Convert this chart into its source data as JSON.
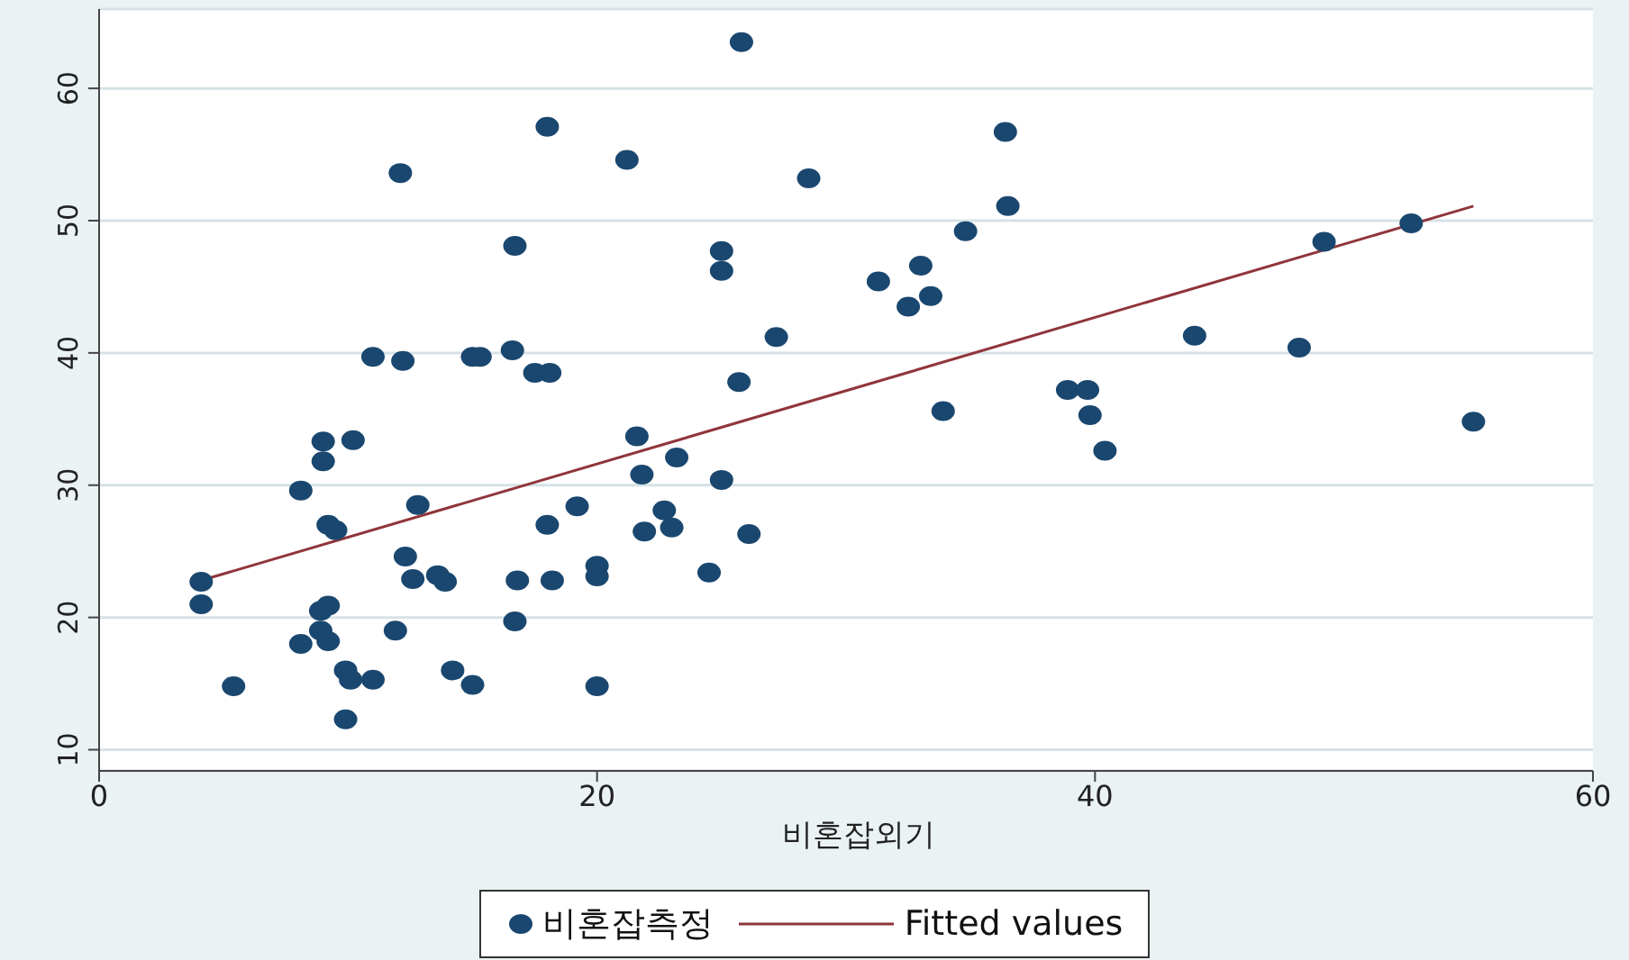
{
  "chart_data": {
    "type": "scatter",
    "xlabel": "비혼잡외기",
    "xlim": [
      0,
      60
    ],
    "xticks": [
      0,
      20,
      40,
      60
    ],
    "ylim": [
      8.4,
      66
    ],
    "yticks": [
      10,
      20,
      30,
      40,
      50,
      60
    ],
    "grid": "y",
    "legend": "bottom",
    "marker": "circle",
    "series": [
      {
        "name": "비혼잡측정",
        "color": "#1a476f",
        "x": [
          4.1,
          4.1,
          5.4,
          8.1,
          8.1,
          9.0,
          9.0,
          9.2,
          9.5,
          8.9,
          9.2,
          8.9,
          9.2,
          9.9,
          10.1,
          9.9,
          10.2,
          11.0,
          11.0,
          12.2,
          12.1,
          11.9,
          12.3,
          12.6,
          12.8,
          13.6,
          13.9,
          14.2,
          15.0,
          15.0,
          15.3,
          16.6,
          16.7,
          16.8,
          16.7,
          17.5,
          18.1,
          18.0,
          18.0,
          18.2,
          19.2,
          20.0,
          20.0,
          20.0,
          21.2,
          21.6,
          21.8,
          21.9,
          22.7,
          23.0,
          23.2,
          24.5,
          25.0,
          25.0,
          25.0,
          25.7,
          26.1,
          25.8,
          27.2,
          28.5,
          31.3,
          32.5,
          33.0,
          33.4,
          33.9,
          34.8,
          36.5,
          36.4,
          38.9,
          39.7,
          39.8,
          40.4,
          44.0,
          48.2,
          49.2,
          52.7,
          55.2
        ],
        "values": [
          22.7,
          21.0,
          14.8,
          29.6,
          18.0,
          33.3,
          31.8,
          27.0,
          26.6,
          20.5,
          20.9,
          19.0,
          18.2,
          16.0,
          15.3,
          12.3,
          33.4,
          15.3,
          39.7,
          39.4,
          53.6,
          19.0,
          24.6,
          22.9,
          28.5,
          23.2,
          22.7,
          16.0,
          14.9,
          39.7,
          39.7,
          40.2,
          48.1,
          22.8,
          19.7,
          38.5,
          38.5,
          57.1,
          27.0,
          22.8,
          28.4,
          23.9,
          23.1,
          14.8,
          54.6,
          33.7,
          30.8,
          26.5,
          28.1,
          26.8,
          32.1,
          23.4,
          30.4,
          47.7,
          46.2,
          37.8,
          26.3,
          63.5,
          41.2,
          53.2,
          45.4,
          43.5,
          46.6,
          44.3,
          35.6,
          49.2,
          51.1,
          56.7,
          37.2,
          37.2,
          35.3,
          32.6,
          41.3,
          40.4,
          48.4,
          49.8,
          34.8
        ]
      },
      {
        "name": "Fitted values",
        "type": "line",
        "color": "#90353b",
        "marker": "none",
        "line_style": "solid",
        "x": [
          4.1,
          55.2
        ],
        "values": [
          22.8,
          51.1
        ]
      }
    ]
  }
}
